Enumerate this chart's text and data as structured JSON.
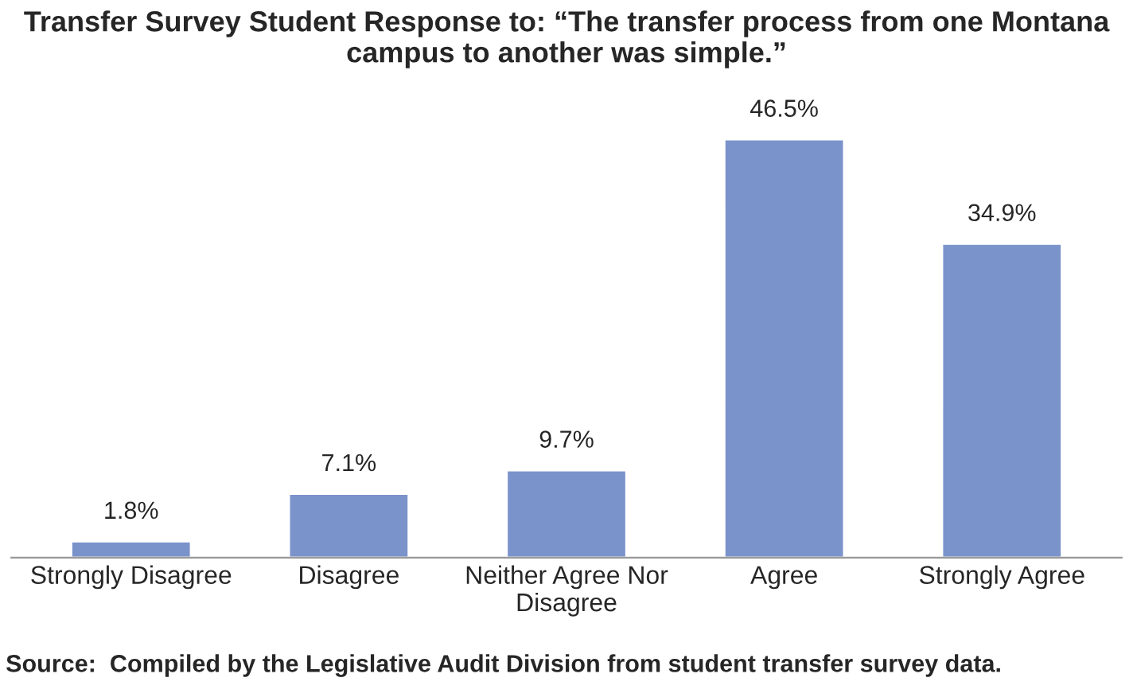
{
  "chart_data": {
    "type": "bar",
    "title": "Transfer Survey Student Response to: “The transfer process from one Montana\ncampus to another was simple.”",
    "categories": [
      "Strongly Disagree",
      "Disagree",
      "Neither Agree Nor\nDisagree",
      "Agree",
      "Strongly Agree"
    ],
    "values": [
      1.8,
      7.1,
      9.7,
      46.5,
      34.9
    ],
    "value_labels": [
      "1.8%",
      "7.1%",
      "9.7%",
      "46.5%",
      "34.9%"
    ],
    "color": "#7b93cb",
    "tick_labels": "x",
    "annotations": [
      "Source:  Compiled by the Legislative Audit Division from student transfer survey data."
    ]
  }
}
